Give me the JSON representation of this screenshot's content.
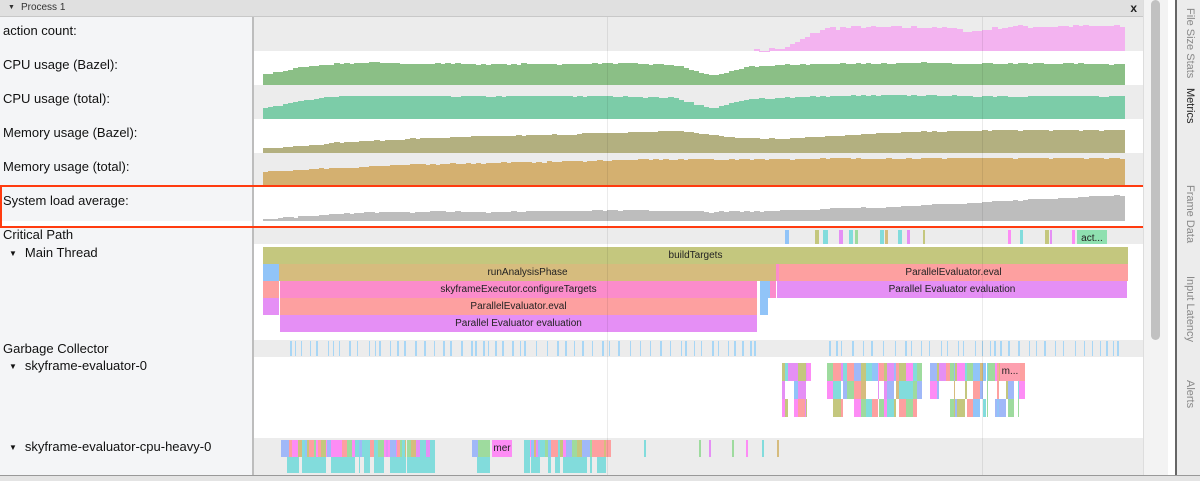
{
  "process": {
    "title": "Process 1",
    "close_label": "x"
  },
  "counters": [
    {
      "label": "action count:",
      "color": "#f3b3f0",
      "values": [
        0,
        0,
        0,
        0,
        0,
        0,
        0,
        0,
        0,
        0,
        0,
        0,
        0,
        0,
        0.1,
        0.75,
        0.8,
        0.78,
        0.8,
        0.65,
        0.82,
        0.82,
        0.83,
        0.82
      ]
    },
    {
      "label": "CPU usage (Bazel):",
      "color": "#8bbf86",
      "values": [
        0.35,
        0.6,
        0.72,
        0.74,
        0.7,
        0.72,
        0.68,
        0.7,
        0.7,
        0.72,
        0.7,
        0.66,
        0.3,
        0.6,
        0.68,
        0.7,
        0.72,
        0.72,
        0.74,
        0.72,
        0.72,
        0.72,
        0.7,
        0.7
      ]
    },
    {
      "label": "CPU usage (total):",
      "color": "#7ccca8",
      "values": [
        0.35,
        0.62,
        0.76,
        0.78,
        0.76,
        0.76,
        0.74,
        0.76,
        0.76,
        0.76,
        0.74,
        0.7,
        0.35,
        0.66,
        0.72,
        0.76,
        0.78,
        0.78,
        0.78,
        0.76,
        0.76,
        0.76,
        0.76,
        0.76
      ]
    },
    {
      "label": "Memory usage (Bazel):",
      "color": "#b3b080",
      "values": [
        0.15,
        0.25,
        0.35,
        0.42,
        0.48,
        0.52,
        0.55,
        0.58,
        0.62,
        0.66,
        0.7,
        0.74,
        0.6,
        0.48,
        0.5,
        0.56,
        0.62,
        0.68,
        0.72,
        0.74,
        0.76,
        0.76,
        0.76,
        0.76
      ]
    },
    {
      "label": "Memory usage (total):",
      "color": "#d4b070",
      "values": [
        0.5,
        0.58,
        0.64,
        0.7,
        0.74,
        0.78,
        0.8,
        0.82,
        0.85,
        0.88,
        0.9,
        0.92,
        0.92,
        0.92,
        0.93,
        0.94,
        0.95,
        0.95,
        0.96,
        0.96,
        0.96,
        0.96,
        0.96,
        0.96
      ]
    },
    {
      "label": "System load average:",
      "color": "#bdbdbd",
      "values": [
        0.05,
        0.15,
        0.25,
        0.3,
        0.3,
        0.32,
        0.3,
        0.32,
        0.34,
        0.36,
        0.36,
        0.34,
        0.3,
        0.32,
        0.36,
        0.4,
        0.44,
        0.48,
        0.54,
        0.6,
        0.68,
        0.74,
        0.8,
        0.86
      ]
    }
  ],
  "threads": {
    "critical_path": {
      "label": "Critical Path",
      "truncated_slice": "act..."
    },
    "main_thread": {
      "label": "Main Thread",
      "slices": {
        "build_targets": "buildTargets",
        "run_analysis": "runAnalysisPhase",
        "parallel_eval_right": "ParallelEvaluator.eval",
        "configure_targets": "skyframeExecutor.configureTargets",
        "parallel_eval_eval_right": "Parallel Evaluator evaluation",
        "parallel_eval_left": "ParallelEvaluator.eval",
        "parallel_eval_eval_left": "Parallel Evaluator evaluation"
      }
    },
    "gc": {
      "label": "Garbage Collector"
    },
    "evaluator0": {
      "label": "skyframe-evaluator-0",
      "truncated_slice": "m..."
    },
    "cpu_heavy": {
      "label": "skyframe-evaluator-cpu-heavy-0",
      "truncated_slice": "mer"
    }
  },
  "side_tabs": [
    "File Size Stats",
    "Metrics",
    "Frame Data",
    "Input Latency",
    "Alerts"
  ],
  "active_side_tab": "Metrics",
  "slice_colors": {
    "build": "#c4c77e",
    "analysis": "#d6bc7e",
    "eval": "#fda0a0",
    "configure": "#fb8ccb",
    "evaluation": "#e58ff5",
    "blue": "#91c4f8"
  }
}
